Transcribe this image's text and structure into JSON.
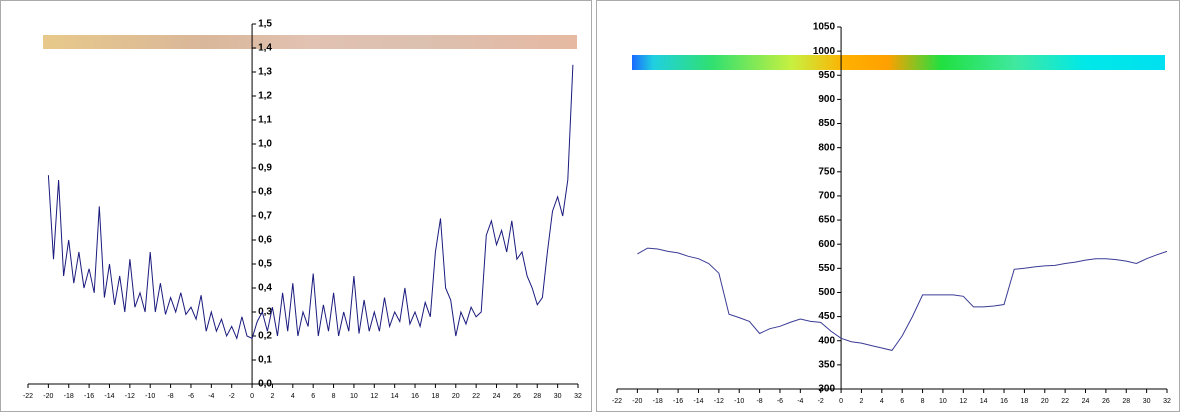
{
  "chart_data": [
    {
      "type": "line",
      "x": [
        -20,
        -19.5,
        -19,
        -18.5,
        -18,
        -17.5,
        -17,
        -16.5,
        -16,
        -15.5,
        -15,
        -14.5,
        -14,
        -13.5,
        -13,
        -12.5,
        -12,
        -11.5,
        -11,
        -10.5,
        -10,
        -9.5,
        -9,
        -8.5,
        -8,
        -7.5,
        -7,
        -6.5,
        -6,
        -5.5,
        -5,
        -4.5,
        -4,
        -3.5,
        -3,
        -2.5,
        -2,
        -1.5,
        -1,
        -0.5,
        0,
        0.5,
        1,
        1.5,
        2,
        2.5,
        3,
        3.5,
        4,
        4.5,
        5,
        5.5,
        6,
        6.5,
        7,
        7.5,
        8,
        8.5,
        9,
        9.5,
        10,
        10.5,
        11,
        11.5,
        12,
        12.5,
        13,
        13.5,
        14,
        14.5,
        15,
        15.5,
        16,
        16.5,
        17,
        17.5,
        18,
        18.5,
        19,
        19.5,
        20,
        20.5,
        21,
        21.5,
        22,
        22.5,
        23,
        23.5,
        24,
        24.5,
        25,
        25.5,
        26,
        26.5,
        27,
        27.5,
        28,
        28.5,
        29,
        29.5,
        30,
        30.5,
        31,
        31.5
      ],
      "series": [
        {
          "color": "#1b1b7e",
          "values": [
            0.87,
            0.52,
            0.85,
            0.45,
            0.6,
            0.42,
            0.55,
            0.4,
            0.48,
            0.38,
            0.74,
            0.36,
            0.5,
            0.33,
            0.45,
            0.3,
            0.52,
            0.32,
            0.38,
            0.3,
            0.55,
            0.3,
            0.42,
            0.29,
            0.36,
            0.3,
            0.38,
            0.29,
            0.32,
            0.27,
            0.37,
            0.22,
            0.3,
            0.22,
            0.27,
            0.2,
            0.24,
            0.19,
            0.28,
            0.2,
            0.19,
            0.26,
            0.3,
            0.22,
            0.32,
            0.2,
            0.38,
            0.22,
            0.42,
            0.2,
            0.3,
            0.24,
            0.46,
            0.2,
            0.33,
            0.22,
            0.38,
            0.2,
            0.3,
            0.22,
            0.45,
            0.21,
            0.35,
            0.22,
            0.3,
            0.22,
            0.36,
            0.24,
            0.3,
            0.26,
            0.4,
            0.25,
            0.3,
            0.24,
            0.34,
            0.28,
            0.55,
            0.69,
            0.4,
            0.35,
            0.2,
            0.3,
            0.25,
            0.32,
            0.28,
            0.3,
            0.62,
            0.68,
            0.58,
            0.64,
            0.55,
            0.68,
            0.52,
            0.55,
            0.45,
            0.4,
            0.33,
            0.36,
            0.55,
            0.72,
            0.78,
            0.7,
            0.85,
            1.33
          ]
        }
      ],
      "xlim": [
        -22,
        32
      ],
      "xticks": [
        -22,
        -20,
        -18,
        -16,
        -14,
        -12,
        -10,
        -8,
        -6,
        -4,
        -2,
        0,
        2,
        4,
        6,
        8,
        10,
        12,
        14,
        16,
        18,
        20,
        22,
        24,
        26,
        28,
        30,
        32
      ],
      "ylim": [
        0,
        1.5
      ],
      "yticks": [
        {
          "value": 0,
          "label": "0,0"
        },
        {
          "value": 0.1,
          "label": "0,1"
        },
        {
          "value": 0.2,
          "label": "0,2"
        },
        {
          "value": 0.3,
          "label": "0,3"
        },
        {
          "value": 0.4,
          "label": "0,4"
        },
        {
          "value": 0.5,
          "label": "0,5"
        },
        {
          "value": 0.6,
          "label": "0,6"
        },
        {
          "value": 0.7,
          "label": "0,7"
        },
        {
          "value": 0.8,
          "label": "0,8"
        },
        {
          "value": 0.9,
          "label": "0,9"
        },
        {
          "value": 1,
          "label": "1,0"
        },
        {
          "value": 1.1,
          "label": "1,1"
        },
        {
          "value": 1.2,
          "label": "1,2"
        },
        {
          "value": 1.3,
          "label": "1,3"
        },
        {
          "value": 1.4,
          "label": "1,4"
        },
        {
          "value": 1.5,
          "label": "1,5"
        }
      ]
    },
    {
      "type": "line",
      "x": [
        -20,
        -19,
        -18,
        -17,
        -16,
        -15,
        -14,
        -13,
        -12,
        -11,
        -10,
        -9,
        -8,
        -7,
        -6,
        -5,
        -4,
        -3,
        -2,
        -1,
        0,
        1,
        2,
        3,
        4,
        5,
        6,
        7,
        8,
        9,
        10,
        11,
        12,
        13,
        14,
        15,
        16,
        17,
        18,
        19,
        20,
        21,
        22,
        23,
        24,
        25,
        26,
        27,
        28,
        29,
        30,
        31,
        32
      ],
      "series": [
        {
          "color": "#3b3b96",
          "values": [
            580,
            592,
            590,
            585,
            582,
            575,
            570,
            560,
            540,
            455,
            448,
            440,
            415,
            425,
            430,
            438,
            445,
            440,
            438,
            420,
            405,
            398,
            395,
            390,
            385,
            380,
            410,
            450,
            495,
            495,
            495,
            495,
            492,
            470,
            470,
            472,
            475,
            548,
            550,
            553,
            555,
            556,
            560,
            563,
            567,
            570,
            570,
            568,
            565,
            560,
            570,
            578,
            585
          ]
        }
      ],
      "xlim": [
        -22,
        32
      ],
      "xticks": [
        -22,
        -20,
        -18,
        -16,
        -14,
        -12,
        -10,
        -8,
        -6,
        -4,
        -2,
        0,
        2,
        4,
        6,
        8,
        10,
        12,
        14,
        16,
        18,
        20,
        22,
        24,
        26,
        28,
        30,
        32
      ],
      "ylim": [
        300,
        1050
      ],
      "yticks": [
        300,
        350,
        400,
        450,
        500,
        550,
        600,
        650,
        700,
        750,
        800,
        850,
        900,
        950,
        1000,
        1050
      ]
    }
  ]
}
